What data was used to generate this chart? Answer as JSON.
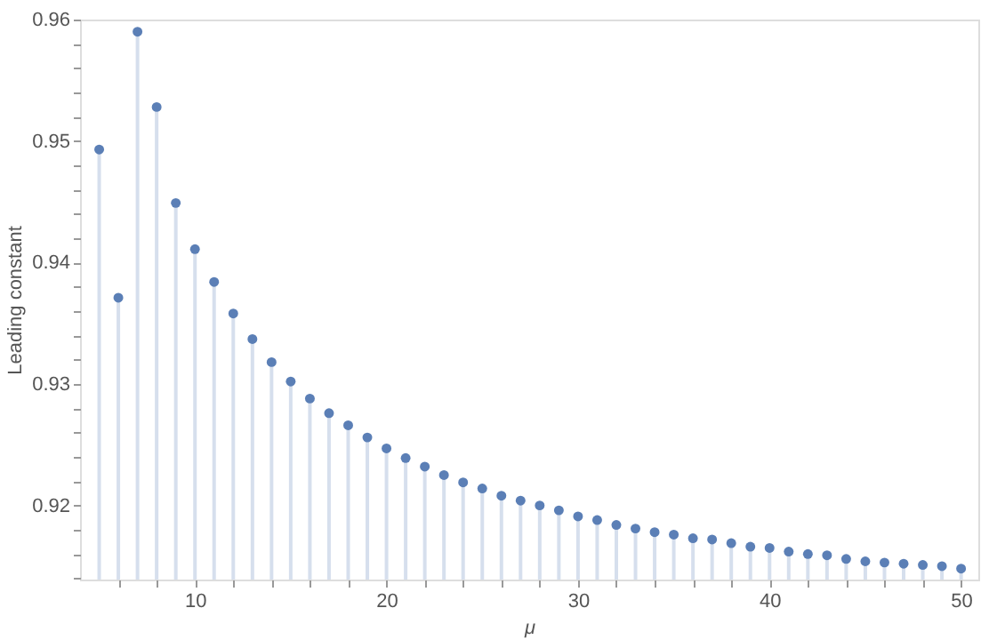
{
  "chart_data": {
    "type": "lollipop",
    "xlabel": "μ",
    "ylabel": "Leading constant",
    "x": [
      5,
      6,
      7,
      8,
      9,
      10,
      11,
      12,
      13,
      14,
      15,
      16,
      17,
      18,
      19,
      20,
      21,
      22,
      23,
      24,
      25,
      26,
      27,
      28,
      29,
      30,
      31,
      32,
      33,
      34,
      35,
      36,
      37,
      38,
      39,
      40,
      41,
      42,
      43,
      44,
      45,
      46,
      47,
      48,
      49,
      50
    ],
    "series": [
      {
        "color": "#5b7fb6",
        "values": [
          0.9493,
          0.9371,
          0.959,
          0.9528,
          0.9449,
          0.9411,
          0.9384,
          0.9358,
          0.9337,
          0.9318,
          0.9302,
          0.9288,
          0.9276,
          0.9266,
          0.9256,
          0.9247,
          0.9239,
          0.9232,
          0.9225,
          0.9219,
          0.9214,
          0.9208,
          0.9204,
          0.92,
          0.9196,
          0.9191,
          0.9188,
          0.9184,
          0.9181,
          0.9178,
          0.9176,
          0.9173,
          0.9172,
          0.9169,
          0.9166,
          0.9165,
          0.9162,
          0.916,
          0.9159,
          0.9156,
          0.9154,
          0.9153,
          0.9152,
          0.9151,
          0.915,
          0.9148
        ]
      }
    ],
    "xlim": [
      4,
      50.9
    ],
    "ylim": [
      0.9139,
      0.96
    ],
    "xticks": [
      {
        "value": 6,
        "label": null
      },
      {
        "value": 8,
        "label": null
      },
      10,
      {
        "value": 12,
        "label": null
      },
      {
        "value": 14,
        "label": null
      },
      {
        "value": 16,
        "label": null
      },
      {
        "value": 18,
        "label": null
      },
      20,
      {
        "value": 22,
        "label": null
      },
      {
        "value": 24,
        "label": null
      },
      {
        "value": 26,
        "label": null
      },
      {
        "value": 28,
        "label": null
      },
      30,
      {
        "value": 32,
        "label": null
      },
      {
        "value": 34,
        "label": null
      },
      {
        "value": 36,
        "label": null
      },
      {
        "value": 38,
        "label": null
      },
      40,
      {
        "value": 42,
        "label": null
      },
      {
        "value": 44,
        "label": null
      },
      {
        "value": 46,
        "label": null
      },
      {
        "value": 48,
        "label": null
      },
      50
    ],
    "yticks": [
      {
        "value": 0.914,
        "label": null
      },
      {
        "value": 0.916,
        "label": null
      },
      {
        "value": 0.918,
        "label": null
      },
      0.92,
      {
        "value": 0.922,
        "label": null
      },
      {
        "value": 0.924,
        "label": null
      },
      {
        "value": 0.926,
        "label": null
      },
      {
        "value": 0.928,
        "label": null
      },
      0.93,
      {
        "value": 0.932,
        "label": null
      },
      {
        "value": 0.934,
        "label": null
      },
      {
        "value": 0.936,
        "label": null
      },
      {
        "value": 0.938,
        "label": null
      },
      0.94,
      {
        "value": 0.942,
        "label": null
      },
      {
        "value": 0.944,
        "label": null
      },
      {
        "value": 0.946,
        "label": null
      },
      {
        "value": 0.948,
        "label": null
      },
      0.95,
      {
        "value": 0.952,
        "label": null
      },
      {
        "value": 0.954,
        "label": null
      },
      {
        "value": 0.956,
        "label": null
      },
      {
        "value": 0.958,
        "label": null
      },
      0.96
    ],
    "grid": false,
    "marker": "circle"
  }
}
